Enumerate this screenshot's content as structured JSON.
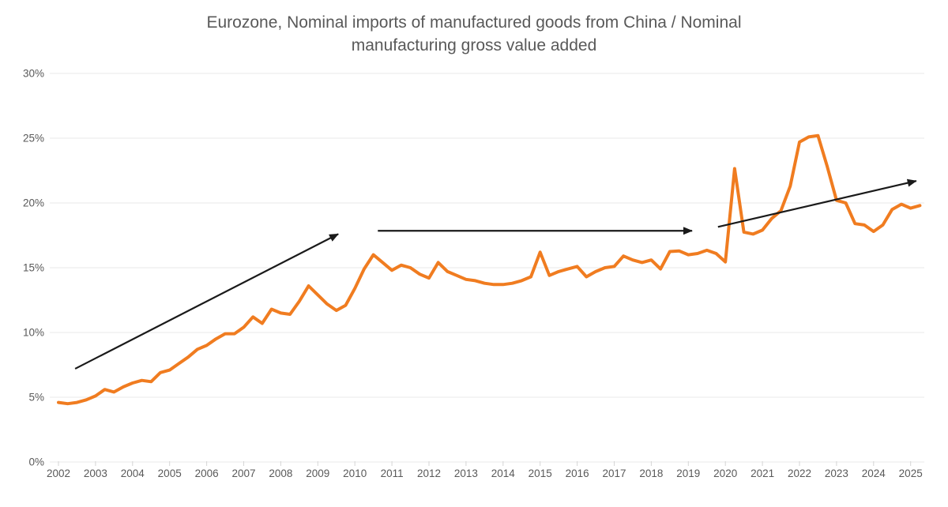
{
  "title": {
    "line1": "Eurozone, Nominal imports of manufactured goods from China / Nominal",
    "line2": "manufacturing gross value added"
  },
  "chart_data": {
    "type": "line",
    "title": "Eurozone, Nominal imports of manufactured goods from China / Nominal manufacturing gross value added",
    "xlabel": "",
    "ylabel": "",
    "x_start": 2002.0,
    "x_step": 0.25,
    "series": [
      {
        "name": "Imports of manufactured goods from China / manufacturing gross value added",
        "unit": "%",
        "values": [
          4.6,
          4.5,
          4.6,
          4.8,
          5.1,
          5.6,
          5.4,
          5.8,
          6.1,
          6.3,
          6.2,
          6.9,
          7.1,
          7.6,
          8.1,
          8.7,
          9.0,
          9.5,
          9.9,
          9.9,
          10.4,
          11.2,
          10.7,
          11.8,
          11.5,
          11.4,
          12.4,
          13.6,
          12.9,
          12.2,
          11.7,
          12.1,
          13.4,
          14.9,
          16.0,
          15.4,
          14.8,
          15.2,
          15.0,
          14.5,
          14.2,
          15.4,
          14.7,
          14.4,
          14.1,
          14.0,
          13.8,
          13.7,
          13.7,
          13.8,
          14.0,
          14.3,
          16.2,
          14.4,
          14.7,
          14.9,
          15.1,
          14.3,
          14.7,
          15.0,
          15.1,
          15.9,
          15.6,
          15.4,
          15.6,
          14.9,
          16.25,
          16.3,
          16.0,
          16.1,
          16.35,
          16.1,
          15.45,
          22.65,
          17.75,
          17.6,
          17.9,
          18.8,
          19.4,
          21.3,
          24.7,
          25.1,
          25.2,
          22.8,
          20.2,
          20.0,
          18.4,
          18.3,
          17.8,
          18.3,
          19.5,
          19.9,
          19.6,
          19.8
        ]
      }
    ],
    "x_tick_labels": [
      "2002",
      "2003",
      "2004",
      "2005",
      "2006",
      "2007",
      "2008",
      "2009",
      "2010",
      "2011",
      "2012",
      "2013",
      "2014",
      "2015",
      "2016",
      "2017",
      "2018",
      "2019",
      "2020",
      "2021",
      "2022",
      "2023",
      "2024",
      "2025"
    ],
    "y_ticks": [
      {
        "value": 0,
        "label": "0%"
      },
      {
        "value": 5,
        "label": "5%"
      },
      {
        "value": 10,
        "label": "10%"
      },
      {
        "value": 15,
        "label": "15%"
      },
      {
        "value": 20,
        "label": "20%"
      },
      {
        "value": 25,
        "label": "25%"
      },
      {
        "value": 30,
        "label": "30%"
      }
    ],
    "ylim": [
      0,
      30
    ],
    "xlim": [
      2001.75,
      2025.4
    ],
    "grid": "horizontal",
    "legend": "none",
    "annotations": [
      {
        "type": "arrow",
        "x1": 2002.45,
        "y1": 7.2,
        "x2": 2009.55,
        "y2": 17.6
      },
      {
        "type": "arrow",
        "x1": 2010.62,
        "y1": 17.85,
        "x2": 2019.1,
        "y2": 17.85
      },
      {
        "type": "arrow",
        "x1": 2019.8,
        "y1": 18.15,
        "x2": 2025.15,
        "y2": 21.7
      }
    ]
  },
  "colors": {
    "line": "#F07C20",
    "arrow": "#1a1a1a",
    "gridline": "#e8e8e8",
    "tick": "#d6d6d6",
    "text": "#595959",
    "background": "#ffffff"
  }
}
